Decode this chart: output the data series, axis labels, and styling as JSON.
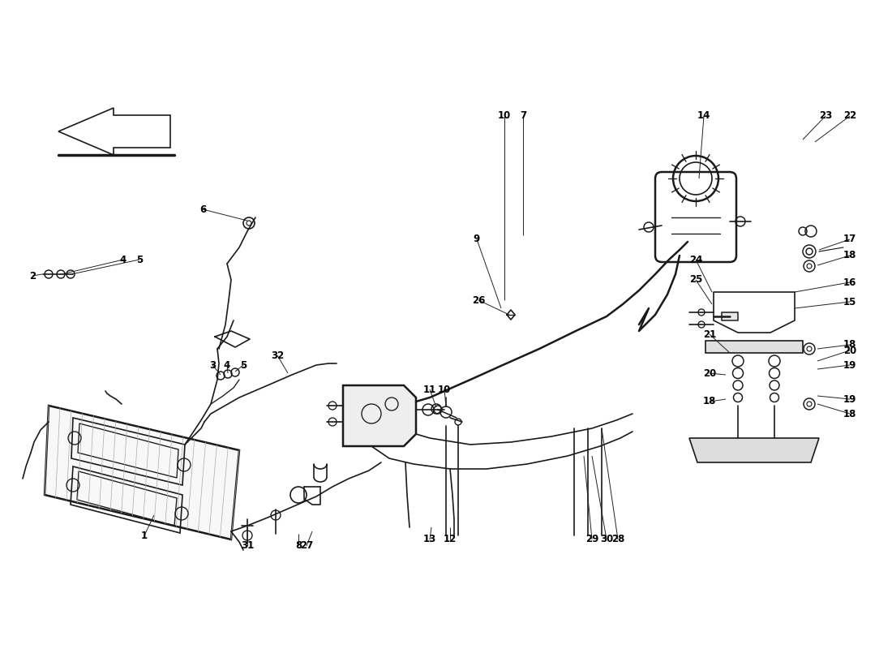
{
  "background_color": "#ffffff",
  "line_color": "#1a1a1a",
  "fig_width": 11.0,
  "fig_height": 8.0
}
